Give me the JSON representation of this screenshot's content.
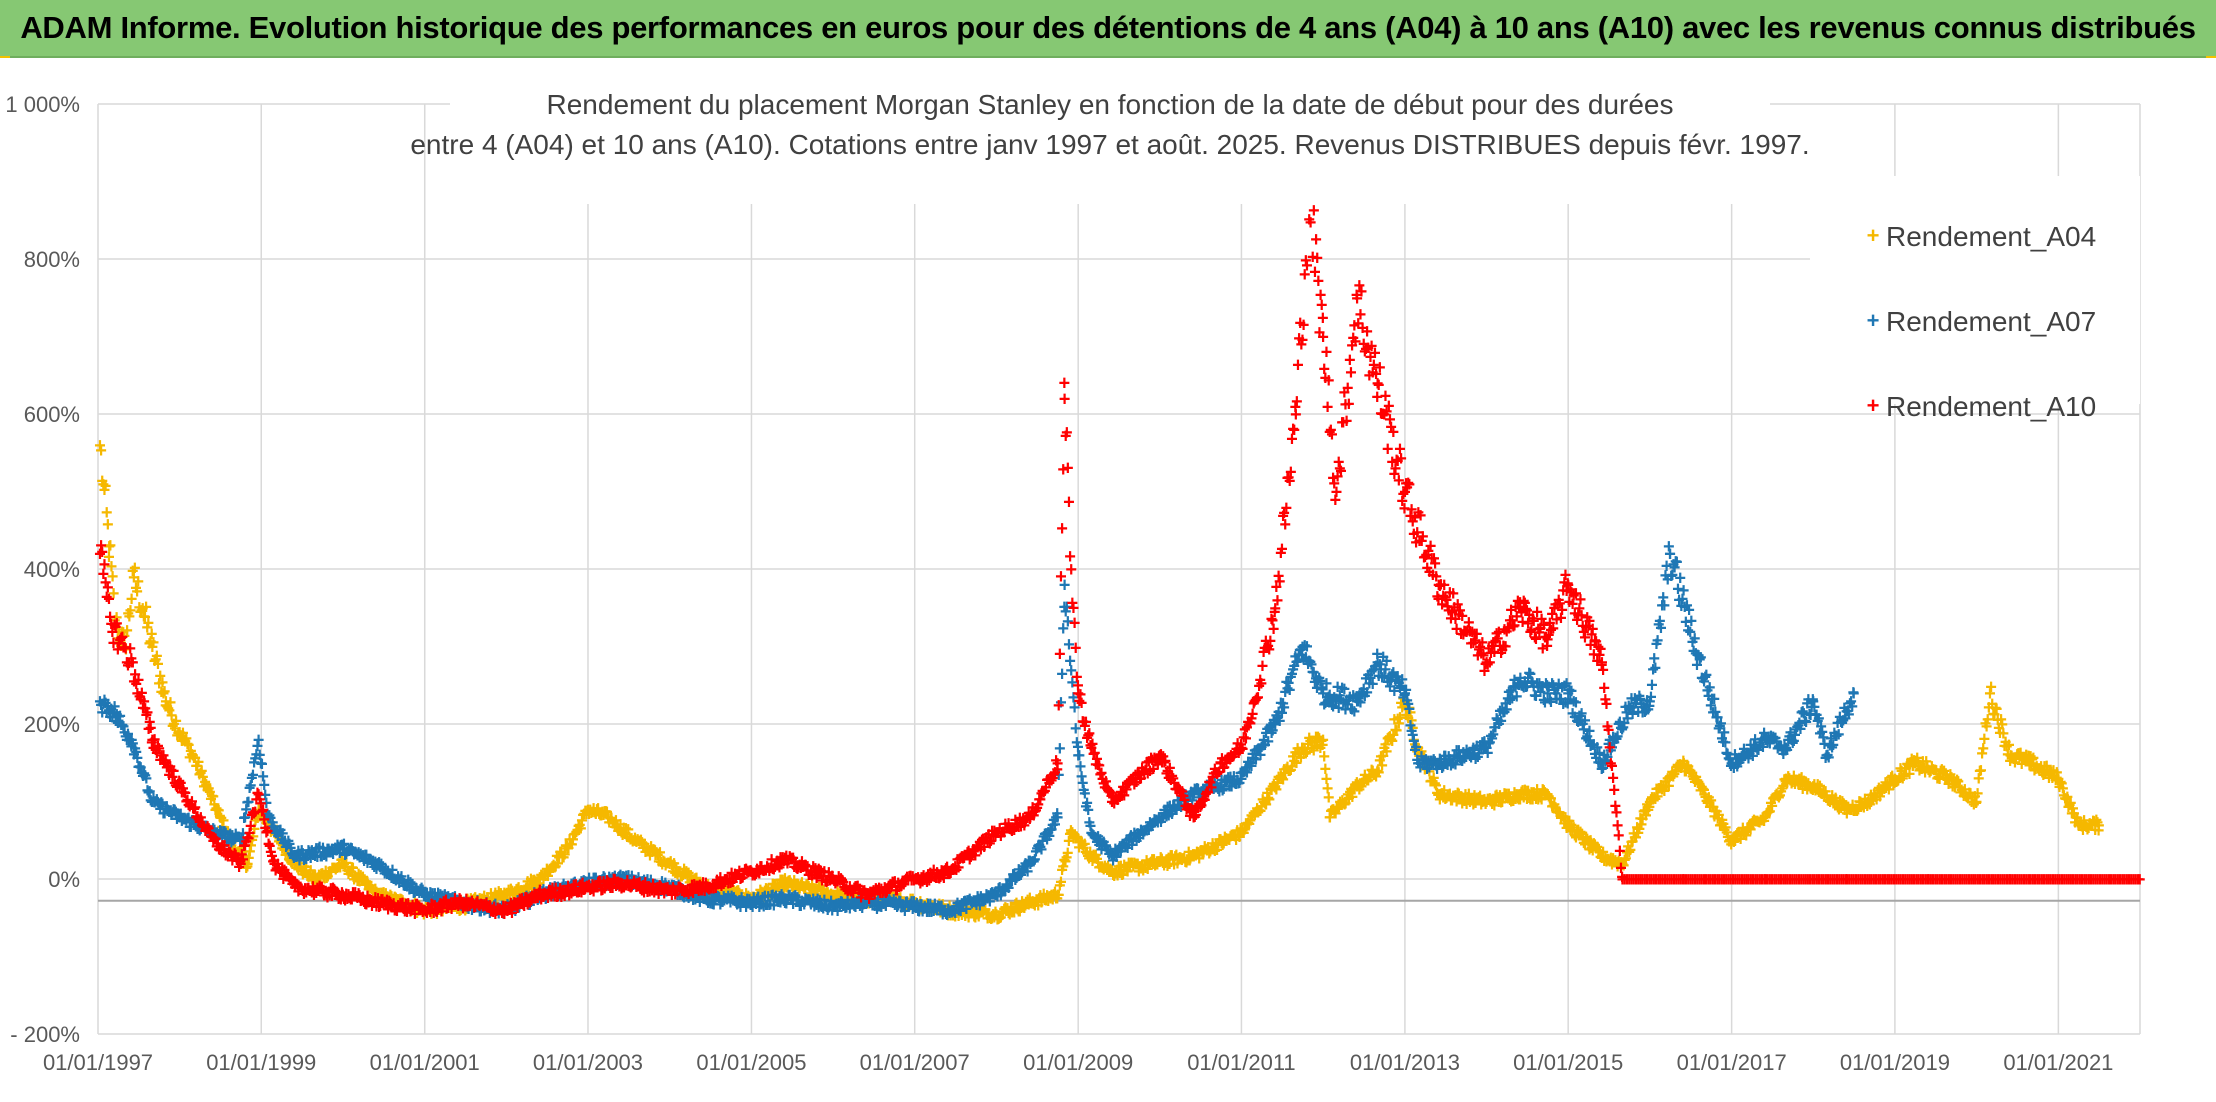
{
  "banner": {
    "title": "ADAM Informe. Evolution historique des performances en euros pour des détentions de 4 ans (A04) à 10 ans (A10) avec les revenus connus distribués"
  },
  "chart_data": {
    "type": "scatter",
    "title_line1": "Rendement du placement Morgan Stanley en fonction de la date de début pour des durées",
    "title_line2": "entre 4 (A04) et 10 ans (A10). Cotations entre janv 1997 et août. 2025. Revenus DISTRIBUES depuis févr. 1997.",
    "xlabel": "",
    "ylabel": "",
    "x_range": [
      "1997-01-01",
      "2022-01-01"
    ],
    "ylim": [
      -200,
      1000
    ],
    "y_ticks": [
      {
        "value": 1000,
        "label": "1 000%"
      },
      {
        "value": 800,
        "label": "800%"
      },
      {
        "value": 600,
        "label": "600%"
      },
      {
        "value": 400,
        "label": "400%"
      },
      {
        "value": 200,
        "label": "200%"
      },
      {
        "value": 0,
        "label": "0%"
      },
      {
        "value": -200,
        "label": "- 200%"
      }
    ],
    "x_ticks": [
      "01/01/1997",
      "01/01/1999",
      "01/01/2001",
      "01/01/2003",
      "01/01/2005",
      "01/01/2007",
      "01/01/2009",
      "01/01/2011",
      "01/01/2013",
      "01/01/2015",
      "01/01/2017",
      "01/01/2019",
      "01/01/2021"
    ],
    "grid": true,
    "legend_position": "top-right",
    "series": [
      {
        "name": "Rendement_A04",
        "color": "#f5b800",
        "points": [
          [
            "1997-01-10",
            560
          ],
          [
            "1997-01-25",
            510
          ],
          [
            "1997-02-20",
            430
          ],
          [
            "1997-03-20",
            330
          ],
          [
            "1997-05-01",
            300
          ],
          [
            "1997-06-10",
            390
          ],
          [
            "1997-07-20",
            350
          ],
          [
            "1997-09-01",
            300
          ],
          [
            "1997-11-01",
            230
          ],
          [
            "1998-01-01",
            190
          ],
          [
            "1998-03-01",
            160
          ],
          [
            "1998-05-01",
            120
          ],
          [
            "1998-07-01",
            80
          ],
          [
            "1998-09-01",
            40
          ],
          [
            "1998-11-01",
            20
          ],
          [
            "1998-12-20",
            90
          ],
          [
            "1999-03-01",
            60
          ],
          [
            "1999-06-01",
            20
          ],
          [
            "1999-09-01",
            0
          ],
          [
            "2000-01-01",
            20
          ],
          [
            "2000-06-01",
            -20
          ],
          [
            "2001-01-01",
            -40
          ],
          [
            "2001-06-01",
            -35
          ],
          [
            "2002-01-01",
            -20
          ],
          [
            "2002-06-01",
            0
          ],
          [
            "2002-10-01",
            40
          ],
          [
            "2003-01-01",
            90
          ],
          [
            "2003-04-01",
            80
          ],
          [
            "2003-08-01",
            50
          ],
          [
            "2004-01-01",
            20
          ],
          [
            "2004-06-01",
            -10
          ],
          [
            "2005-01-01",
            -25
          ],
          [
            "2005-06-01",
            -5
          ],
          [
            "2006-01-01",
            -20
          ],
          [
            "2006-06-01",
            -25
          ],
          [
            "2007-01-01",
            -30
          ],
          [
            "2007-06-01",
            -40
          ],
          [
            "2008-01-01",
            -45
          ],
          [
            "2008-06-01",
            -30
          ],
          [
            "2008-10-01",
            -20
          ],
          [
            "2008-12-01",
            60
          ],
          [
            "2009-03-01",
            30
          ],
          [
            "2009-06-01",
            10
          ],
          [
            "2009-12-01",
            20
          ],
          [
            "2010-06-01",
            30
          ],
          [
            "2011-01-01",
            60
          ],
          [
            "2011-06-01",
            120
          ],
          [
            "2011-10-01",
            170
          ],
          [
            "2012-01-01",
            180
          ],
          [
            "2012-02-01",
            80
          ],
          [
            "2012-06-01",
            120
          ],
          [
            "2012-09-01",
            140
          ],
          [
            "2013-01-01",
            230
          ],
          [
            "2013-03-01",
            170
          ],
          [
            "2013-06-01",
            110
          ],
          [
            "2014-01-01",
            100
          ],
          [
            "2014-06-01",
            110
          ],
          [
            "2014-10-01",
            110
          ],
          [
            "2015-01-01",
            70
          ],
          [
            "2015-06-01",
            30
          ],
          [
            "2015-09-01",
            20
          ],
          [
            "2016-01-01",
            100
          ],
          [
            "2016-06-01",
            150
          ],
          [
            "2016-09-01",
            110
          ],
          [
            "2017-01-01",
            50
          ],
          [
            "2017-06-01",
            80
          ],
          [
            "2017-09-01",
            130
          ],
          [
            "2018-01-01",
            120
          ],
          [
            "2018-06-01",
            90
          ],
          [
            "2018-09-01",
            100
          ],
          [
            "2019-01-01",
            130
          ],
          [
            "2019-04-01",
            150
          ],
          [
            "2019-09-01",
            130
          ],
          [
            "2020-01-01",
            100
          ],
          [
            "2020-03-01",
            240
          ],
          [
            "2020-06-01",
            160
          ],
          [
            "2020-09-01",
            150
          ],
          [
            "2021-01-01",
            130
          ],
          [
            "2021-04-01",
            70
          ],
          [
            "2021-07-01",
            70
          ]
        ]
      },
      {
        "name": "Rendement_A07",
        "color": "#1f77b4",
        "points": [
          [
            "1997-01-10",
            230
          ],
          [
            "1997-03-01",
            220
          ],
          [
            "1997-06-01",
            180
          ],
          [
            "1997-09-01",
            100
          ],
          [
            "1998-01-01",
            80
          ],
          [
            "1998-06-01",
            60
          ],
          [
            "1998-10-01",
            50
          ],
          [
            "1998-12-20",
            180
          ],
          [
            "1999-02-01",
            80
          ],
          [
            "1999-06-01",
            30
          ],
          [
            "2000-01-01",
            40
          ],
          [
            "2000-06-01",
            20
          ],
          [
            "2001-01-01",
            -20
          ],
          [
            "2001-06-01",
            -30
          ],
          [
            "2002-01-01",
            -40
          ],
          [
            "2002-06-01",
            -20
          ],
          [
            "2003-01-01",
            -5
          ],
          [
            "2003-06-01",
            0
          ],
          [
            "2004-01-01",
            -10
          ],
          [
            "2004-06-01",
            -25
          ],
          [
            "2005-01-01",
            -30
          ],
          [
            "2005-06-01",
            -25
          ],
          [
            "2006-01-01",
            -35
          ],
          [
            "2006-06-01",
            -30
          ],
          [
            "2007-01-01",
            -35
          ],
          [
            "2007-06-01",
            -40
          ],
          [
            "2008-01-01",
            -20
          ],
          [
            "2008-06-01",
            20
          ],
          [
            "2008-10-01",
            80
          ],
          [
            "2008-11-01",
            380
          ],
          [
            "2009-01-01",
            160
          ],
          [
            "2009-03-01",
            60
          ],
          [
            "2009-06-01",
            30
          ],
          [
            "2010-01-01",
            80
          ],
          [
            "2010-06-01",
            110
          ],
          [
            "2011-01-01",
            130
          ],
          [
            "2011-06-01",
            200
          ],
          [
            "2011-10-01",
            300
          ],
          [
            "2012-01-01",
            240
          ],
          [
            "2012-06-01",
            230
          ],
          [
            "2012-09-01",
            280
          ],
          [
            "2013-01-01",
            240
          ],
          [
            "2013-03-01",
            150
          ],
          [
            "2013-06-01",
            150
          ],
          [
            "2014-01-01",
            170
          ],
          [
            "2014-06-01",
            260
          ],
          [
            "2014-10-01",
            240
          ],
          [
            "2015-01-01",
            240
          ],
          [
            "2015-06-01",
            150
          ],
          [
            "2015-10-01",
            220
          ],
          [
            "2016-01-01",
            230
          ],
          [
            "2016-04-01",
            420
          ],
          [
            "2016-08-01",
            290
          ],
          [
            "2017-01-01",
            150
          ],
          [
            "2017-06-01",
            180
          ],
          [
            "2017-09-01",
            170
          ],
          [
            "2018-01-01",
            230
          ],
          [
            "2018-03-01",
            160
          ],
          [
            "2018-07-01",
            240
          ]
        ]
      },
      {
        "name": "Rendement_A10",
        "color": "#ff0000",
        "points": [
          [
            "1997-01-10",
            420
          ],
          [
            "1997-03-01",
            330
          ],
          [
            "1997-06-01",
            280
          ],
          [
            "1997-09-01",
            180
          ],
          [
            "1998-01-01",
            120
          ],
          [
            "1998-06-01",
            50
          ],
          [
            "1998-10-01",
            20
          ],
          [
            "1998-12-20",
            110
          ],
          [
            "1999-03-01",
            20
          ],
          [
            "1999-06-01",
            -10
          ],
          [
            "2000-01-01",
            -20
          ],
          [
            "2000-06-01",
            -30
          ],
          [
            "2001-01-01",
            -40
          ],
          [
            "2001-06-01",
            -30
          ],
          [
            "2002-01-01",
            -40
          ],
          [
            "2002-06-01",
            -20
          ],
          [
            "2003-01-01",
            -10
          ],
          [
            "2003-06-01",
            -5
          ],
          [
            "2004-01-01",
            -15
          ],
          [
            "2004-06-01",
            -10
          ],
          [
            "2005-01-01",
            10
          ],
          [
            "2005-06-01",
            25
          ],
          [
            "2006-01-01",
            0
          ],
          [
            "2006-06-01",
            -20
          ],
          [
            "2007-01-01",
            0
          ],
          [
            "2007-06-01",
            10
          ],
          [
            "2008-01-01",
            60
          ],
          [
            "2008-06-01",
            80
          ],
          [
            "2008-10-01",
            150
          ],
          [
            "2008-11-01",
            620
          ],
          [
            "2008-12-01",
            400
          ],
          [
            "2009-01-01",
            240
          ],
          [
            "2009-03-01",
            170
          ],
          [
            "2009-06-01",
            100
          ],
          [
            "2010-01-01",
            160
          ],
          [
            "2010-06-01",
            80
          ],
          [
            "2010-10-01",
            150
          ],
          [
            "2011-01-01",
            170
          ],
          [
            "2011-03-01",
            230
          ],
          [
            "2011-06-01",
            350
          ],
          [
            "2011-09-01",
            600
          ],
          [
            "2011-11-01",
            880
          ],
          [
            "2012-01-01",
            700
          ],
          [
            "2012-03-01",
            500
          ],
          [
            "2012-06-01",
            750
          ],
          [
            "2012-09-01",
            640
          ],
          [
            "2013-01-01",
            500
          ],
          [
            "2013-06-01",
            380
          ],
          [
            "2014-01-01",
            280
          ],
          [
            "2014-06-01",
            350
          ],
          [
            "2014-10-01",
            310
          ],
          [
            "2015-01-01",
            380
          ],
          [
            "2015-06-01",
            280
          ],
          [
            "2015-09-01",
            0
          ],
          [
            "2016-06-01",
            0
          ],
          [
            "2017-06-01",
            0
          ],
          [
            "2018-06-01",
            0
          ],
          [
            "2019-06-01",
            0
          ],
          [
            "2020-06-01",
            0
          ],
          [
            "2021-12-31",
            0
          ]
        ]
      }
    ]
  }
}
